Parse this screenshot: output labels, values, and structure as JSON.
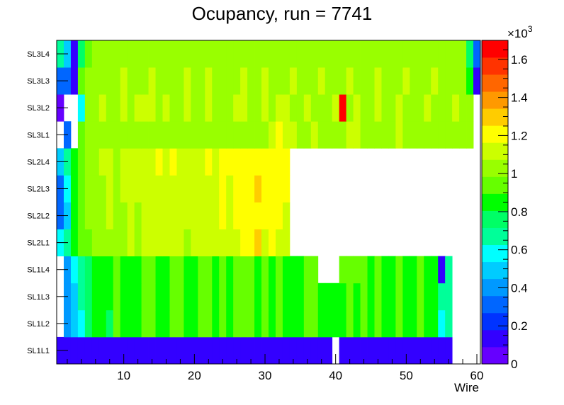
{
  "chart_data": {
    "type": "heatmap",
    "title": "Ocupancy, run = 7741",
    "xlabel": "Wire",
    "ylabel": "",
    "x_range": [
      0.5,
      60.5
    ],
    "x_ticks": [
      "10",
      "20",
      "30",
      "40",
      "50",
      "60"
    ],
    "y_categories": [
      "SL1L1",
      "SL1L2",
      "SL1L3",
      "SL1L4",
      "SL2L1",
      "SL2L2",
      "SL2L3",
      "SL2L4",
      "SL3L1",
      "SL3L2",
      "SL3L3",
      "SL3L4"
    ],
    "z_range": [
      0,
      1700
    ],
    "z_exponent_label": "×10",
    "z_exponent": "3",
    "z_ticks": [
      "0",
      "0.2",
      "0.4",
      "0.6",
      "0.8",
      "1",
      "1.2",
      "1.4",
      "1.6"
    ],
    "palette": [
      "#6600ff",
      "#3300ff",
      "#0033ff",
      "#0066ff",
      "#0099ff",
      "#00ccff",
      "#00ffff",
      "#00ff99",
      "#00ff66",
      "#00ff00",
      "#66ff00",
      "#99ff00",
      "#ccff00",
      "#ffff00",
      "#ffcc00",
      "#ff9900",
      "#ff6600",
      "#ff3300",
      "#ff0000"
    ],
    "layers": [
      {
        "name": "SL1L1",
        "values": [
          100,
          100,
          100,
          100,
          100,
          100,
          100,
          100,
          100,
          100,
          100,
          100,
          100,
          100,
          100,
          100,
          100,
          100,
          100,
          100,
          100,
          100,
          100,
          100,
          100,
          100,
          100,
          100,
          100,
          100,
          100,
          100,
          100,
          100,
          100,
          100,
          100,
          100,
          100,
          0,
          100,
          100,
          100,
          100,
          100,
          100,
          100,
          100,
          100,
          100,
          100,
          100,
          100,
          100,
          100,
          100,
          0,
          0,
          0,
          0
        ]
      },
      {
        "name": "SL1L2",
        "values": [
          0,
          380,
          490,
          620,
          760,
          840,
          860,
          800,
          900,
          880,
          820,
          870,
          900,
          920,
          880,
          840,
          900,
          930,
          880,
          870,
          920,
          900,
          880,
          910,
          860,
          900,
          930,
          920,
          880,
          900,
          870,
          910,
          890,
          860,
          880,
          900,
          920,
          860,
          880,
          840,
          880,
          900,
          870,
          920,
          880,
          900,
          860,
          890,
          910,
          880,
          870,
          900,
          860,
          880,
          620,
          650,
          0,
          0,
          0,
          0
        ]
      },
      {
        "name": "SL1L3",
        "values": [
          0,
          400,
          520,
          640,
          780,
          860,
          880,
          850,
          900,
          890,
          860,
          880,
          910,
          920,
          880,
          850,
          900,
          930,
          890,
          870,
          920,
          900,
          890,
          910,
          860,
          900,
          930,
          920,
          880,
          900,
          870,
          910,
          890,
          860,
          880,
          900,
          920,
          860,
          880,
          840,
          880,
          900,
          870,
          920,
          880,
          900,
          860,
          890,
          910,
          880,
          870,
          900,
          860,
          880,
          640,
          640,
          0,
          0,
          0,
          0
        ]
      },
      {
        "name": "SL1L4",
        "values": [
          0,
          440,
          560,
          680,
          780,
          850,
          880,
          850,
          900,
          890,
          860,
          880,
          910,
          900,
          880,
          850,
          900,
          930,
          890,
          870,
          920,
          900,
          890,
          910,
          860,
          900,
          930,
          920,
          880,
          900,
          870,
          910,
          890,
          860,
          880,
          900,
          910,
          0,
          0,
          0,
          960,
          960,
          930,
          920,
          880,
          900,
          860,
          890,
          910,
          880,
          870,
          900,
          860,
          880,
          100,
          640,
          0,
          0,
          0,
          0
        ]
      },
      {
        "name": "SL2L1",
        "values": [
          620,
          640,
          860,
          900,
          980,
          1020,
          1040,
          1060,
          1040,
          1050,
          1080,
          1060,
          1080,
          1120,
          1160,
          1100,
          1140,
          1080,
          1060,
          1100,
          1120,
          1080,
          1100,
          1150,
          1140,
          1160,
          1220,
          1180,
          1260,
          1160,
          1180,
          1160,
          1140,
          0,
          0,
          0,
          0,
          0,
          0,
          0,
          0,
          0,
          0,
          0,
          0,
          0,
          0,
          0,
          0,
          0,
          0,
          0,
          0,
          0,
          0,
          0,
          0,
          0,
          0,
          0
        ]
      },
      {
        "name": "SL2L2",
        "values": [
          280,
          500,
          860,
          900,
          1020,
          1040,
          1060,
          1080,
          1060,
          1060,
          1080,
          1060,
          1100,
          1140,
          1160,
          1120,
          1160,
          1100,
          1080,
          1120,
          1140,
          1100,
          1120,
          1180,
          1160,
          1180,
          1220,
          1200,
          1220,
          1200,
          1180,
          1200,
          1160,
          0,
          0,
          0,
          0,
          0,
          0,
          0,
          0,
          0,
          0,
          0,
          0,
          0,
          0,
          0,
          0,
          0,
          0,
          0,
          0,
          0,
          0,
          0,
          0,
          0,
          0,
          0
        ]
      },
      {
        "name": "SL2L3",
        "values": [
          320,
          560,
          880,
          940,
          1040,
          1060,
          1060,
          1080,
          1060,
          1080,
          1080,
          1080,
          1120,
          1140,
          1160,
          1140,
          1160,
          1120,
          1100,
          1140,
          1140,
          1120,
          1160,
          1200,
          1160,
          1180,
          1220,
          1240,
          1260,
          1220,
          1200,
          1220,
          1180,
          0,
          0,
          0,
          0,
          0,
          0,
          0,
          0,
          0,
          0,
          0,
          0,
          0,
          0,
          0,
          0,
          0,
          0,
          0,
          0,
          0,
          0,
          0,
          0,
          0,
          0,
          0
        ]
      },
      {
        "name": "SL2L4",
        "values": [
          500,
          640,
          880,
          920,
          1020,
          1060,
          1080,
          1080,
          1060,
          1080,
          1100,
          1080,
          1120,
          1140,
          1180,
          1160,
          1180,
          1160,
          1140,
          1160,
          1140,
          1180,
          1160,
          1200,
          1180,
          1200,
          1240,
          1240,
          1250,
          1240,
          1220,
          1220,
          1180,
          0,
          0,
          0,
          0,
          0,
          0,
          0,
          0,
          0,
          0,
          0,
          0,
          0,
          0,
          0,
          0,
          0,
          0,
          0,
          0,
          0,
          0,
          0,
          0,
          0,
          0,
          0
        ]
      },
      {
        "name": "SL3L1",
        "values": [
          0,
          300,
          0,
          960,
          1000,
          1040,
          1020,
          1040,
          1020,
          1040,
          1000,
          1040,
          1060,
          1020,
          1040,
          1060,
          1020,
          1000,
          1060,
          1040,
          1020,
          1040,
          1060,
          1020,
          1000,
          1040,
          1060,
          1040,
          1020,
          1060,
          1080,
          1200,
          1120,
          1080,
          1040,
          1060,
          1080,
          1060,
          1040,
          1020,
          1060,
          1080,
          1100,
          1040,
          1060,
          1020,
          1040,
          1060,
          1080,
          1040,
          1020,
          1060,
          1040,
          1020,
          1040,
          1060,
          1040,
          1020,
          1040,
          0
        ]
      },
      {
        "name": "SL3L2",
        "values": [
          80,
          0,
          0,
          600,
          1000,
          1060,
          1080,
          1060,
          1040,
          1080,
          1060,
          1080,
          1100,
          1080,
          1060,
          1080,
          1000,
          1060,
          1080,
          1040,
          1060,
          1080,
          1040,
          1060,
          1020,
          1080,
          1100,
          1060,
          1040,
          1080,
          1060,
          1100,
          1080,
          1060,
          1020,
          1080,
          1060,
          1040,
          1060,
          1080,
          1650,
          1060,
          1080,
          1060,
          1040,
          1080,
          1060,
          1040,
          1080,
          1060,
          1040,
          1060,
          1080,
          1040,
          1060,
          1040,
          1080,
          1060,
          1020,
          0
        ]
      },
      {
        "name": "SL3L3",
        "values": [
          320,
          320,
          120,
          900,
          1000,
          1040,
          1020,
          1060,
          1040,
          1080,
          1060,
          1040,
          1060,
          1080,
          1060,
          1040,
          1020,
          1060,
          1080,
          1040,
          1060,
          1080,
          1060,
          1040,
          1020,
          1060,
          1080,
          1060,
          1040,
          1080,
          1060,
          1040,
          1060,
          1080,
          1060,
          1040,
          1060,
          1080,
          1060,
          1040,
          1060,
          1080,
          1060,
          1040,
          1060,
          1080,
          1060,
          1040,
          1060,
          1080,
          1060,
          1040,
          1060,
          1080,
          1060,
          1040,
          1060,
          1040,
          880,
          120
        ]
      },
      {
        "name": "SL3L4",
        "values": [
          700,
          530,
          120,
          800,
          960,
          1020,
          1040,
          1020,
          1060,
          1040,
          1020,
          1060,
          1040,
          1020,
          1000,
          1060,
          1040,
          1020,
          1040,
          1060,
          1020,
          1040,
          1060,
          1040,
          1020,
          1060,
          1040,
          1020,
          1060,
          1040,
          1020,
          1040,
          1060,
          1020,
          1040,
          1060,
          1040,
          1020,
          1060,
          1040,
          1020,
          1060,
          1040,
          1020,
          1060,
          1040,
          1020,
          1060,
          1040,
          1020,
          1040,
          1060,
          1020,
          1040,
          1060,
          1020,
          1040,
          1060,
          740,
          300
        ]
      }
    ]
  }
}
